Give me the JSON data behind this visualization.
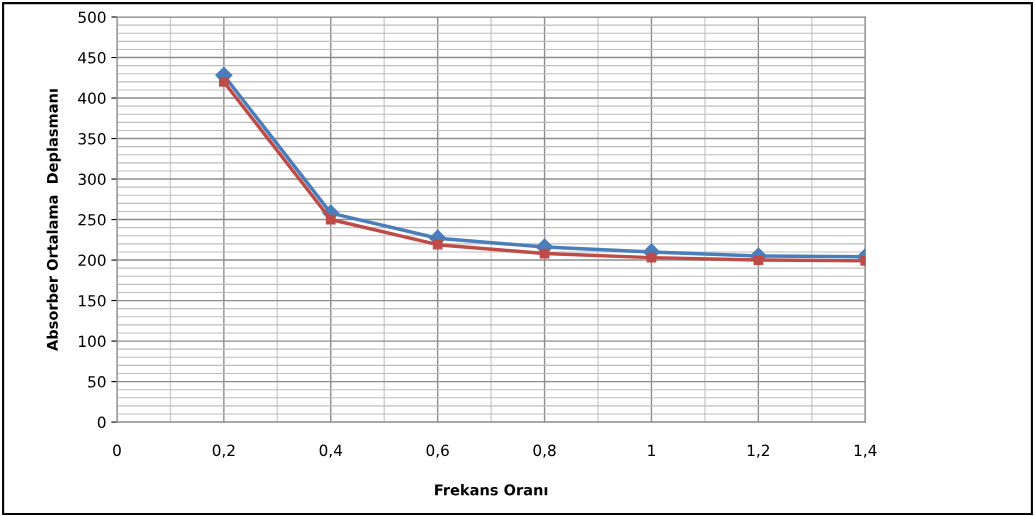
{
  "chart_data": {
    "type": "line",
    "xlabel": "Frekans Oranı",
    "ylabel": "Absorber Ortalama  Deplasmanı",
    "x": [
      0.2,
      0.4,
      0.6,
      0.8,
      1.0,
      1.2,
      1.4
    ],
    "series": [
      {
        "color": "#4a7ebb",
        "marker": "diamond",
        "values": [
          428,
          258,
          227,
          216,
          210,
          205,
          204
        ]
      },
      {
        "color": "#be4b48",
        "marker": "square",
        "values": [
          420,
          250,
          219,
          208,
          203,
          200,
          199
        ]
      }
    ],
    "xlim": [
      0,
      1.4
    ],
    "ylim": [
      0,
      500
    ],
    "xticks": [
      0,
      {
        "value": 0.2,
        "label": "0,2"
      },
      {
        "value": 0.4,
        "label": "0,4"
      },
      {
        "value": 0.6,
        "label": "0,6"
      },
      {
        "value": 0.8,
        "label": "0,8"
      },
      1,
      {
        "value": 1.2,
        "label": "1,2"
      },
      {
        "value": 1.4,
        "label": "1,4"
      }
    ],
    "yticks": [
      0,
      50,
      100,
      150,
      200,
      250,
      300,
      350,
      400,
      450,
      500
    ],
    "grid": true,
    "line_style": "solid"
  }
}
